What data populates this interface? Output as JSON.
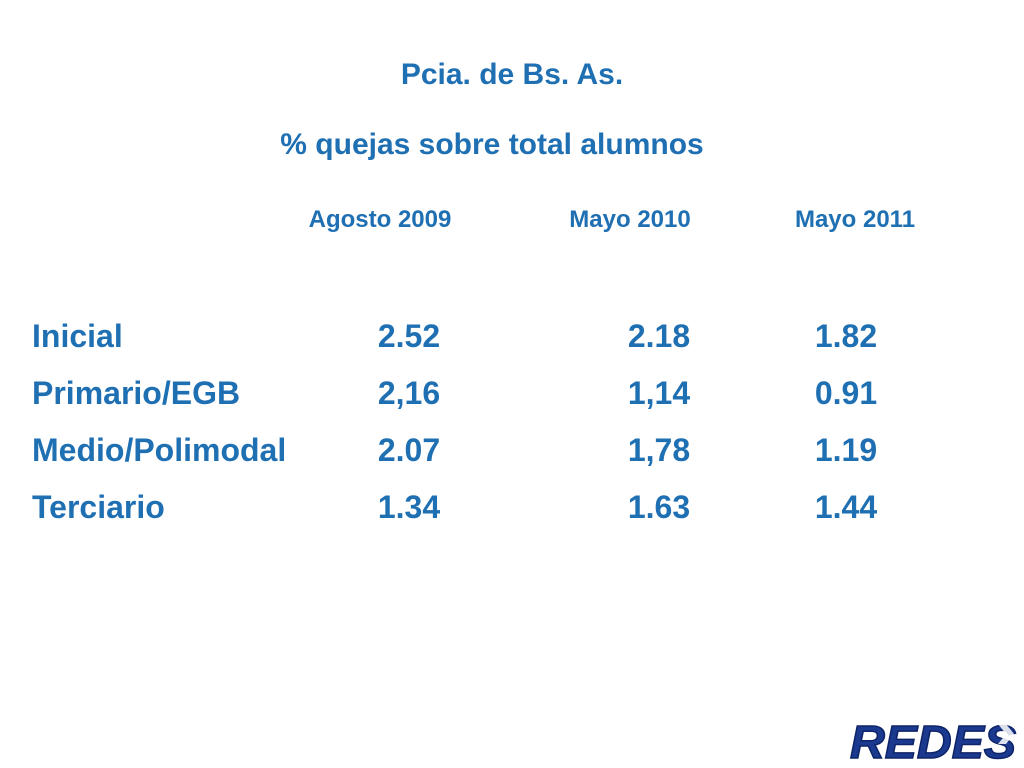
{
  "slide": {
    "title": "Pcia. de Bs. As.",
    "subtitle": "% quejas sobre total alumnos"
  },
  "table": {
    "columns": [
      "Agosto 2009",
      "Mayo 2010",
      "Mayo 2011"
    ],
    "rows": [
      {
        "label": "Inicial",
        "values": [
          "2.52",
          "2.18",
          "1.82"
        ]
      },
      {
        "label": "Primario/EGB",
        "values": [
          "2,16",
          "1,14",
          "0.91"
        ]
      },
      {
        "label": "Medio/Polimodal",
        "values": [
          "2.07",
          "1,78",
          "1.19"
        ]
      },
      {
        "label": "Terciario",
        "values": [
          "1.34",
          "1.63",
          "1.44"
        ]
      }
    ]
  },
  "logo": {
    "text": "REDES",
    "color": "#1b3a8f"
  },
  "colors": {
    "text": "#1f6fb3"
  }
}
